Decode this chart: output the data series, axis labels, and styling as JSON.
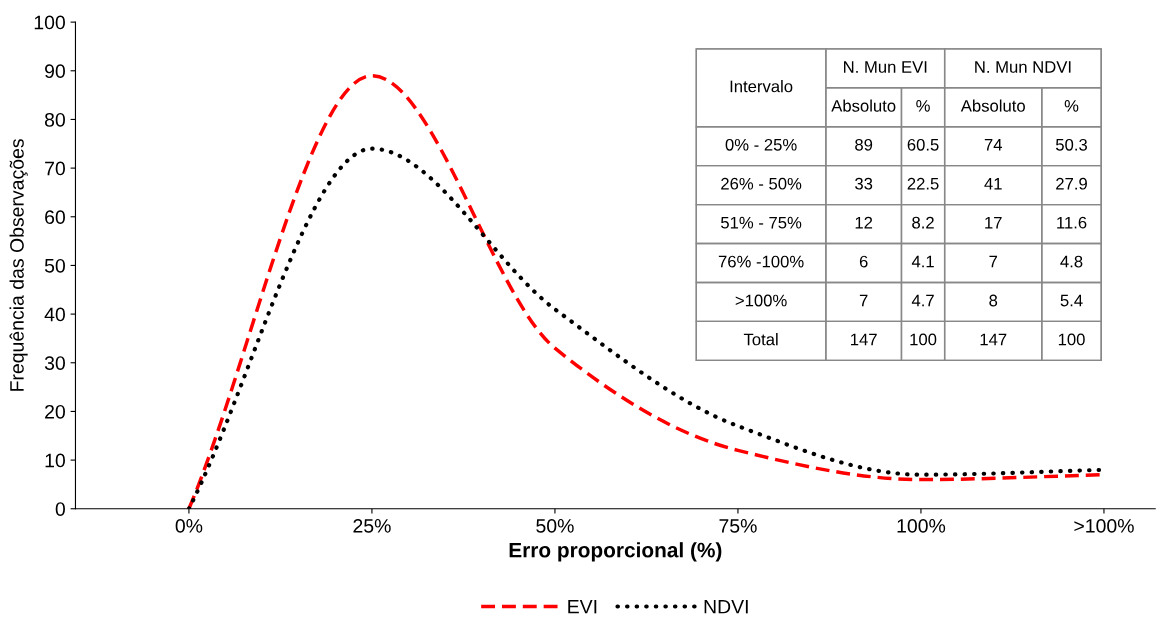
{
  "chart_data": {
    "type": "line",
    "xlabel": "Erro proporcional (%)",
    "ylabel": "Frequência das Observações",
    "categories": [
      "0%",
      "25%",
      "50%",
      "75%",
      "100%",
      ">100%"
    ],
    "series": [
      {
        "name": "EVI",
        "color": "#ff0000",
        "line_style": "dashed",
        "values": [
          0,
          89,
          33,
          12,
          6,
          7
        ]
      },
      {
        "name": "NDVI",
        "color": "#000000",
        "line_style": "dotted",
        "values": [
          0,
          74,
          41,
          17,
          7,
          8
        ]
      }
    ],
    "ylim": [
      0,
      100
    ],
    "yticks": [
      0,
      10,
      20,
      30,
      40,
      50,
      60,
      70,
      80,
      90,
      100
    ],
    "grid": false,
    "legend": "bottom",
    "marker": "none",
    "annotations": [
      "Intervalo",
      "N. Mun EVI",
      "N. Mun NDVI",
      "Absoluto",
      "%",
      "Absoluto",
      "%",
      "0% - 25%",
      "89",
      "60.5",
      "74",
      "50.3",
      "26% - 50%",
      "33",
      "22.5",
      "41",
      "27.9",
      "51% - 75%",
      "12",
      "8.2",
      "17",
      "11.6",
      "76% -100%",
      "6",
      "4.1",
      "7",
      "4.8",
      ">100%",
      "7",
      "4.7",
      "8",
      "5.4",
      "Total",
      "147",
      "100",
      "147",
      "100"
    ]
  }
}
